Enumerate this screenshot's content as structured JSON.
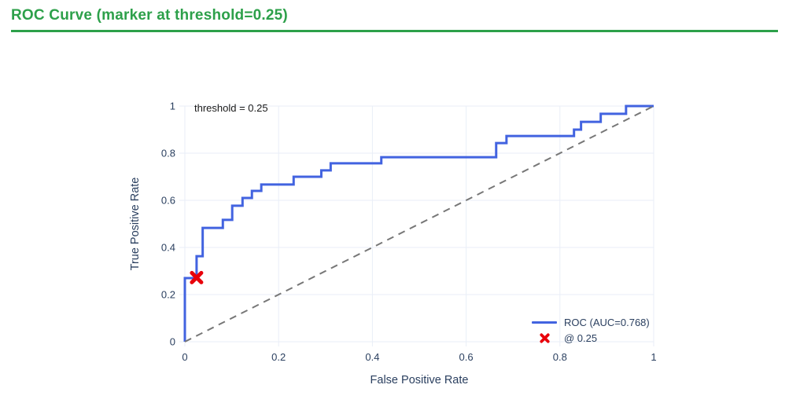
{
  "page": {
    "title": "ROC Curve (marker at threshold=0.25)"
  },
  "colors": {
    "title_green": "#2da04a",
    "roc_blue": "#4263e0",
    "marker_red": "#e8000b",
    "diagonal_gray": "#777777",
    "grid": "#e9eef7",
    "axis_text": "#2a3f5f",
    "annotation_text": "#1a1a1a",
    "background": "#ffffff"
  },
  "chart_data": {
    "type": "line",
    "title": "ROC Curve (marker at threshold=0.25)",
    "xlabel": "False Positive Rate",
    "ylabel": "True Positive Rate",
    "xlim": [
      0,
      1
    ],
    "ylim": [
      0,
      1
    ],
    "grid": true,
    "x_ticks": [
      0,
      0.2,
      0.4,
      0.6,
      0.8,
      1
    ],
    "x_tick_labels": [
      "0",
      "0.2",
      "0.4",
      "0.6",
      "0.8",
      "1"
    ],
    "y_ticks": [
      0,
      0.2,
      0.4,
      0.6,
      0.8,
      1
    ],
    "y_tick_labels": [
      "0",
      "0.2",
      "0.4",
      "0.6",
      "0.8",
      "1"
    ],
    "annotation": {
      "text": "threshold = 0.25",
      "x": 0.02,
      "y": 1.0
    },
    "auc": 0.768,
    "threshold": 0.25,
    "legend": {
      "position": "bottom-right",
      "entries": [
        {
          "swatch": "line",
          "label": "ROC (AUC=0.768)"
        },
        {
          "swatch": "x-marker",
          "label": "@ 0.25"
        }
      ]
    },
    "series": [
      {
        "name": "ROC (AUC=0.768)",
        "kind": "step",
        "color": "#4263e0",
        "points": [
          [
            0,
            0
          ],
          [
            0,
            0.27
          ],
          [
            0.025,
            0.27
          ],
          [
            0.025,
            0.363
          ],
          [
            0.038,
            0.363
          ],
          [
            0.038,
            0.483
          ],
          [
            0.081,
            0.483
          ],
          [
            0.081,
            0.517
          ],
          [
            0.101,
            0.517
          ],
          [
            0.101,
            0.577
          ],
          [
            0.123,
            0.577
          ],
          [
            0.123,
            0.61
          ],
          [
            0.143,
            0.61
          ],
          [
            0.143,
            0.64
          ],
          [
            0.163,
            0.64
          ],
          [
            0.163,
            0.667
          ],
          [
            0.232,
            0.667
          ],
          [
            0.232,
            0.7
          ],
          [
            0.291,
            0.7
          ],
          [
            0.291,
            0.727
          ],
          [
            0.311,
            0.727
          ],
          [
            0.311,
            0.757
          ],
          [
            0.419,
            0.757
          ],
          [
            0.419,
            0.783
          ],
          [
            0.664,
            0.783
          ],
          [
            0.664,
            0.843
          ],
          [
            0.686,
            0.843
          ],
          [
            0.686,
            0.873
          ],
          [
            0.83,
            0.873
          ],
          [
            0.83,
            0.9
          ],
          [
            0.845,
            0.9
          ],
          [
            0.845,
            0.933
          ],
          [
            0.887,
            0.933
          ],
          [
            0.887,
            0.967
          ],
          [
            0.941,
            0.967
          ],
          [
            0.941,
            1
          ],
          [
            1,
            1
          ]
        ]
      },
      {
        "name": "@ 0.25",
        "kind": "marker",
        "symbol": "x",
        "color": "#e8000b",
        "points": [
          [
            0.025,
            0.272
          ]
        ]
      },
      {
        "name": "chance-diagonal",
        "kind": "dashed",
        "color": "#777777",
        "points": [
          [
            0,
            0
          ],
          [
            1,
            1
          ]
        ]
      }
    ]
  }
}
